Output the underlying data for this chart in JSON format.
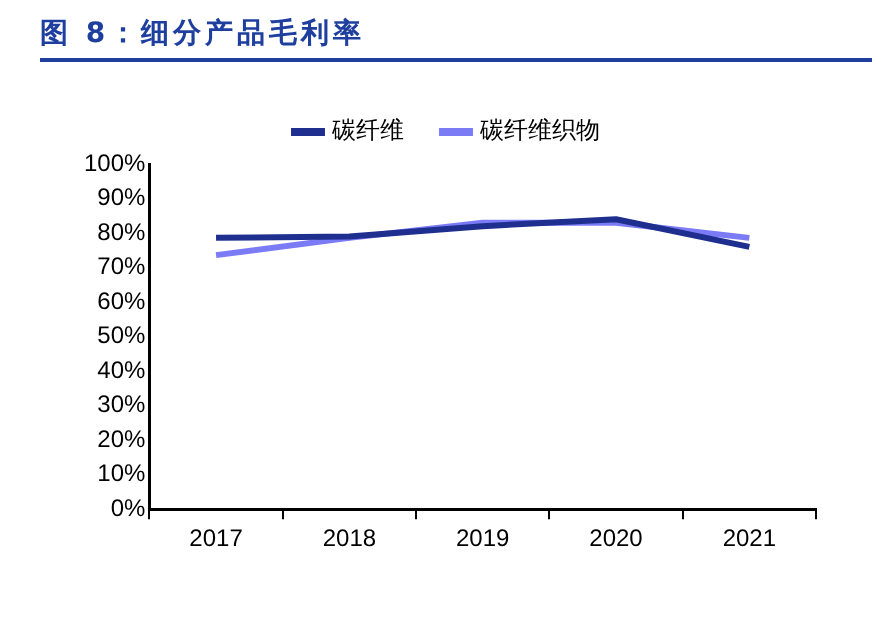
{
  "chart_data": {
    "type": "line",
    "title": "图 8：细分产品毛利率",
    "categories": [
      "2017",
      "2018",
      "2019",
      "2020",
      "2021"
    ],
    "series": [
      {
        "name": "碳纤维",
        "color": "#1f2f8f",
        "values": [
          78.6,
          79,
          82,
          84,
          76
        ]
      },
      {
        "name": "碳纤维织物",
        "color": "#7b7bf5",
        "values": [
          73.6,
          78.6,
          83,
          83,
          78.6
        ]
      }
    ],
    "ylim": [
      0,
      100
    ],
    "yticks": [
      {
        "value": 0,
        "label": "0%"
      },
      {
        "value": 10,
        "label": "10%"
      },
      {
        "value": 20,
        "label": "20%"
      },
      {
        "value": 30,
        "label": "30%"
      },
      {
        "value": 40,
        "label": "40%"
      },
      {
        "value": 50,
        "label": "50%"
      },
      {
        "value": 60,
        "label": "60%"
      },
      {
        "value": 70,
        "label": "70%"
      },
      {
        "value": 80,
        "label": "80%"
      },
      {
        "value": 90,
        "label": "90%"
      },
      {
        "value": 100,
        "label": "100%"
      }
    ],
    "grid": false,
    "legend": "top",
    "marker": "none",
    "line_style": "solid"
  }
}
